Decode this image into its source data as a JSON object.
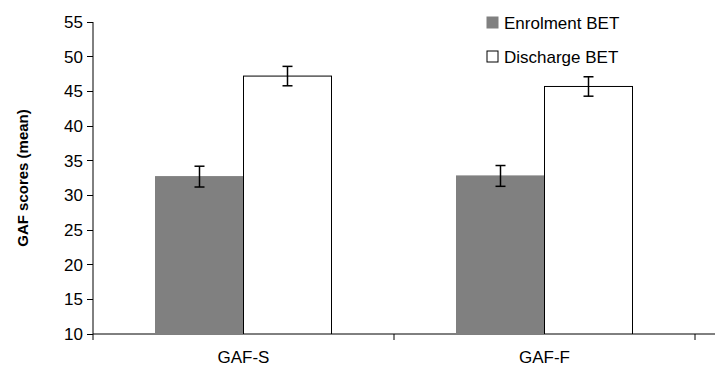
{
  "chart_data": {
    "type": "bar",
    "y_label": "GAF scores (mean)",
    "categories": [
      "GAF-S",
      "GAF-F"
    ],
    "series": [
      {
        "name": "Enrolment BET",
        "color": "#808080",
        "values": [
          32.7,
          32.8
        ],
        "errors": [
          1.5,
          1.5
        ]
      },
      {
        "name": "Discharge BET",
        "color": "#ffffff",
        "values": [
          47.2,
          45.7
        ],
        "errors": [
          1.4,
          1.4
        ]
      }
    ],
    "ylim": [
      10,
      55
    ],
    "yticks": [
      10,
      15,
      20,
      25,
      30,
      35,
      40,
      45,
      50,
      55
    ],
    "grid": false,
    "legend": "top-right"
  }
}
